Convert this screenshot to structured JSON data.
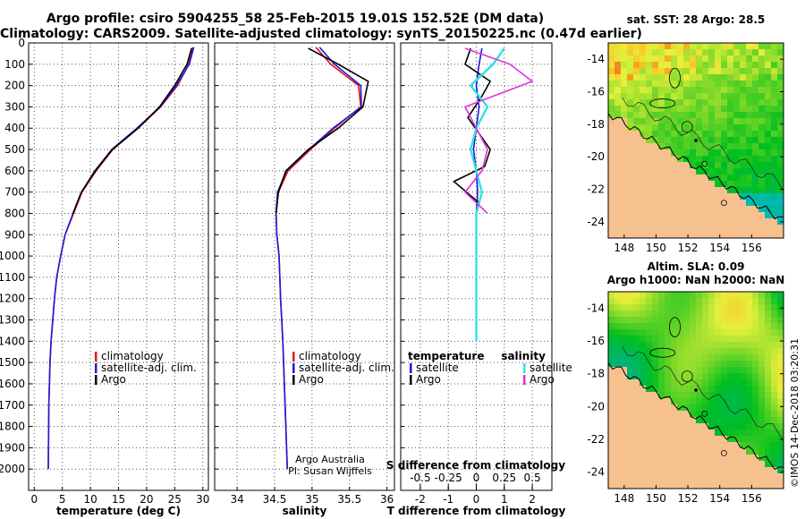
{
  "title_line1": "Argo profile: csiro 5904255_58 25-Feb-2015 19.01S 152.52E (DM data)",
  "title_line2": "Climatology: CARS2009. Satellite-adjusted climatology: synTS_20150225.nc (0.47d earlier)",
  "sst_title": "sat. SST: 28 Argo: 28.5",
  "altim_title": "Altim. SLA: 0.09",
  "argo_h_title": "Argo h1000: NaN h2000: NaN",
  "credit1": "Argo Australia",
  "credit2": "PI: Susan Wijffels",
  "imos_stamp": "©IMOS 14-Dec-2018 03:20:31",
  "legend_clim": {
    "items": [
      {
        "label": "climatology",
        "color": "#e8121b"
      },
      {
        "label": "satellite-adj. clim.",
        "color": "#1a1adf"
      },
      {
        "label": "Argo",
        "color": "#000000"
      }
    ]
  },
  "legend_diff": {
    "temperature_header": "temperature",
    "salinity_header": "salinity",
    "temperature_items": [
      {
        "label": "satellite",
        "color": "#1a1adf"
      },
      {
        "label": "Argo",
        "color": "#000000"
      }
    ],
    "salinity_items": [
      {
        "label": "satellite",
        "color": "#33e0e0"
      },
      {
        "label": "Argo",
        "color": "#e030e0"
      }
    ]
  },
  "colors": {
    "land": "#f7c08f",
    "clim": "#e8121b",
    "sat": "#1a1adf",
    "argo": "#000000",
    "sal_sat": "#33e0e0",
    "sal_argo": "#e030e0"
  },
  "chart_data": [
    {
      "type": "line",
      "xlabel": "temperature (deg C)",
      "ylabel": "",
      "xlim": [
        -1,
        31
      ],
      "ylim": [
        2100,
        0
      ],
      "xticks": [
        "0",
        "5",
        "10",
        "15",
        "20",
        "25",
        "30"
      ],
      "yticks": [
        "0",
        "100",
        "200",
        "300",
        "400",
        "500",
        "600",
        "700",
        "800",
        "900",
        "1000",
        "1100",
        "1200",
        "1300",
        "1400",
        "1500",
        "1600",
        "1700",
        "1800",
        "1900",
        "2000"
      ],
      "grid": true,
      "legend": "lower-right",
      "series": [
        {
          "name": "climatology",
          "x": [
            28.2,
            27.5,
            25.5,
            22.5,
            18.5,
            14,
            11,
            8.5,
            7,
            5.5,
            4.7,
            4,
            3.6,
            3.3,
            3,
            2.8,
            2.6,
            2.5
          ],
          "y": [
            20,
            100,
            200,
            300,
            400,
            500,
            600,
            700,
            800,
            900,
            1000,
            1100,
            1200,
            1300,
            1400,
            1500,
            1700,
            2000
          ]
        },
        {
          "name": "satellite-adj. clim.",
          "x": [
            28.4,
            27.6,
            25.3,
            22.4,
            18.3,
            13.8,
            10.8,
            8.4,
            6.9,
            5.5,
            4.7,
            4,
            3.6,
            3.3,
            3,
            2.8,
            2.6,
            2.5
          ],
          "y": [
            20,
            100,
            200,
            300,
            400,
            500,
            600,
            700,
            800,
            900,
            1000,
            1100,
            1200,
            1300,
            1400,
            1500,
            1700,
            2000
          ]
        },
        {
          "name": "Argo",
          "x": [
            28,
            27.2,
            25,
            22.3,
            18.5,
            13.9,
            10.9,
            8.4,
            6.9
          ],
          "y": [
            25,
            100,
            200,
            300,
            400,
            500,
            600,
            700,
            800
          ]
        }
      ]
    },
    {
      "type": "line",
      "xlabel": "salinity",
      "ylabel": "",
      "xlim": [
        33.7,
        36.1
      ],
      "ylim": [
        2100,
        0
      ],
      "xticks": [
        "34",
        "34.5",
        "35",
        "35.5",
        "36"
      ],
      "grid": true,
      "legend": "lower-right",
      "series": [
        {
          "name": "climatology",
          "x": [
            35.05,
            35.25,
            35.62,
            35.65,
            35.3,
            34.98,
            34.68,
            34.55,
            34.52,
            34.53,
            34.56,
            34.58,
            34.61,
            34.63,
            34.65,
            34.67
          ],
          "y": [
            20,
            100,
            200,
            300,
            400,
            500,
            600,
            700,
            800,
            900,
            1000,
            1200,
            1400,
            1600,
            1800,
            2000
          ]
        },
        {
          "name": "satellite-adj. clim.",
          "x": [
            35.1,
            35.3,
            35.65,
            35.66,
            35.28,
            34.96,
            34.66,
            34.54,
            34.52,
            34.53,
            34.56,
            34.58,
            34.61,
            34.63,
            34.65,
            34.67
          ],
          "y": [
            20,
            100,
            200,
            300,
            400,
            500,
            600,
            700,
            800,
            900,
            1000,
            1200,
            1400,
            1600,
            1800,
            2000
          ]
        },
        {
          "name": "Argo",
          "x": [
            34.95,
            35.35,
            35.75,
            35.68,
            35.35,
            34.95,
            34.65,
            34.55,
            34.52
          ],
          "y": [
            25,
            100,
            180,
            300,
            400,
            500,
            600,
            700,
            800
          ]
        }
      ]
    },
    {
      "type": "line",
      "xlabel": "T difference from climatology",
      "ylabel": "",
      "xlim": [
        -2.7,
        2.7
      ],
      "ylim": [
        2100,
        0
      ],
      "xticks": [
        "-2",
        "-1",
        "0",
        "1",
        "2"
      ],
      "top_axis_label": "S difference from climatology",
      "top_ticks": [
        "-0.5",
        "-0.25",
        "0",
        "0.25",
        "0.5"
      ],
      "grid": true,
      "series": [
        {
          "name": "temperature satellite",
          "x": [
            0.2,
            0.1,
            0,
            0.1,
            0,
            -0.1,
            0,
            0.05,
            0,
            0
          ],
          "y": [
            25,
            100,
            200,
            300,
            400,
            500,
            600,
            700,
            800,
            1400
          ]
        },
        {
          "name": "temperature Argo",
          "x": [
            -0.2,
            -0.4,
            0.5,
            0.2,
            -0.3,
            0.5,
            0.3,
            -0.8,
            0.1,
            0
          ],
          "y": [
            25,
            100,
            180,
            250,
            350,
            500,
            580,
            650,
            750,
            800
          ]
        },
        {
          "name": "salinity satellite",
          "x": [
            0.25,
            0.15,
            -0.05,
            0.1,
            0,
            -0.05,
            0,
            0.05,
            0,
            0
          ],
          "y": [
            25,
            100,
            200,
            300,
            400,
            500,
            600,
            700,
            800,
            1400
          ]
        },
        {
          "name": "salinity Argo",
          "x": [
            -0.1,
            0.3,
            0.5,
            -0.1,
            0,
            0.1,
            0.05,
            -0.1,
            0.1
          ],
          "y": [
            25,
            100,
            180,
            300,
            400,
            500,
            600,
            700,
            800
          ]
        }
      ]
    },
    {
      "type": "heatmap",
      "title": "sat. SST: 28 Argo: 28.5",
      "xticks": [
        "148",
        "150",
        "152",
        "154",
        "156"
      ],
      "yticks": [
        "-14",
        "-16",
        "-18",
        "-20",
        "-22",
        "-24"
      ],
      "xlim": [
        147,
        158
      ],
      "ylim": [
        -25,
        -13
      ]
    },
    {
      "type": "heatmap",
      "title": "Altim. SLA: 0.09",
      "xticks": [
        "148",
        "150",
        "152",
        "154",
        "156"
      ],
      "yticks": [
        "-14",
        "-16",
        "-18",
        "-20",
        "-22",
        "-24"
      ],
      "xlim": [
        147,
        158
      ],
      "ylim": [
        -25,
        -13
      ]
    }
  ]
}
